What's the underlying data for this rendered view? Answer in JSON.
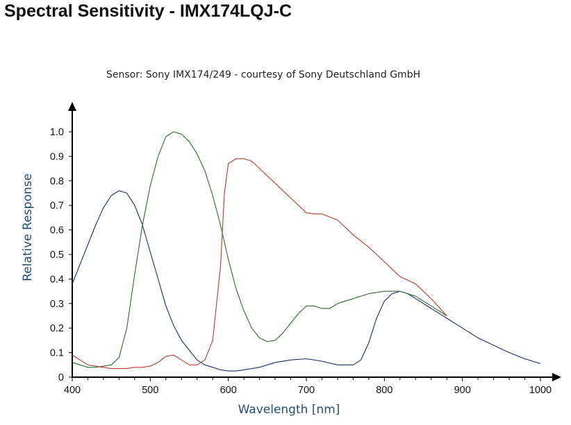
{
  "page": {
    "title": "Spectral Sensitivity - IMX174LQJ-C"
  },
  "chart_data": {
    "type": "line",
    "subtitle": "Sensor: Sony IMX174/249 - courtesy of Sony Deutschland GmbH",
    "xlabel": "Wavelength [nm]",
    "ylabel": "Relative Response",
    "xlim": [
      400,
      1000
    ],
    "ylim": [
      0,
      1.0
    ],
    "x_ticks": [
      400,
      500,
      600,
      700,
      800,
      900,
      1000
    ],
    "y_ticks": [
      0,
      0.1,
      0.2,
      0.3,
      0.4,
      0.5,
      0.6,
      0.7,
      0.8,
      0.9,
      1.0
    ],
    "x_tick_labels": [
      "400",
      "500",
      "600",
      "700",
      "800",
      "900",
      "1000"
    ],
    "y_tick_labels": [
      "0",
      "0.1",
      "0.2",
      "0.3",
      "0.4",
      "0.5",
      "0.6",
      "0.7",
      "0.8",
      "0.9",
      "1.0"
    ],
    "grid": false,
    "series": [
      {
        "color": "#1c2a6b",
        "points": [
          [
            400,
            0.38
          ],
          [
            410,
            0.46
          ],
          [
            420,
            0.54
          ],
          [
            430,
            0.62
          ],
          [
            440,
            0.69
          ],
          [
            450,
            0.74
          ],
          [
            460,
            0.76
          ],
          [
            470,
            0.75
          ],
          [
            480,
            0.7
          ],
          [
            490,
            0.62
          ],
          [
            500,
            0.51
          ],
          [
            510,
            0.4
          ],
          [
            520,
            0.29
          ],
          [
            530,
            0.21
          ],
          [
            540,
            0.15
          ],
          [
            550,
            0.11
          ],
          [
            560,
            0.07
          ],
          [
            570,
            0.05
          ],
          [
            580,
            0.04
          ],
          [
            590,
            0.03
          ],
          [
            600,
            0.025
          ],
          [
            610,
            0.025
          ],
          [
            620,
            0.03
          ],
          [
            640,
            0.04
          ],
          [
            660,
            0.06
          ],
          [
            680,
            0.07
          ],
          [
            700,
            0.075
          ],
          [
            720,
            0.065
          ],
          [
            740,
            0.05
          ],
          [
            760,
            0.05
          ],
          [
            770,
            0.07
          ],
          [
            780,
            0.14
          ],
          [
            790,
            0.24
          ],
          [
            800,
            0.31
          ],
          [
            810,
            0.34
          ],
          [
            820,
            0.35
          ],
          [
            830,
            0.34
          ],
          [
            840,
            0.32
          ],
          [
            860,
            0.28
          ],
          [
            880,
            0.24
          ],
          [
            900,
            0.2
          ],
          [
            920,
            0.16
          ],
          [
            940,
            0.13
          ],
          [
            960,
            0.1
          ],
          [
            980,
            0.075
          ],
          [
            1000,
            0.055
          ]
        ]
      },
      {
        "color": "#2e6b2e",
        "points": [
          [
            400,
            0.06
          ],
          [
            410,
            0.05
          ],
          [
            420,
            0.04
          ],
          [
            430,
            0.04
          ],
          [
            440,
            0.045
          ],
          [
            450,
            0.05
          ],
          [
            460,
            0.08
          ],
          [
            470,
            0.2
          ],
          [
            480,
            0.42
          ],
          [
            490,
            0.62
          ],
          [
            500,
            0.78
          ],
          [
            510,
            0.9
          ],
          [
            520,
            0.98
          ],
          [
            530,
            1.0
          ],
          [
            540,
            0.99
          ],
          [
            550,
            0.96
          ],
          [
            560,
            0.91
          ],
          [
            570,
            0.84
          ],
          [
            580,
            0.74
          ],
          [
            590,
            0.62
          ],
          [
            600,
            0.48
          ],
          [
            610,
            0.36
          ],
          [
            620,
            0.27
          ],
          [
            630,
            0.2
          ],
          [
            640,
            0.16
          ],
          [
            650,
            0.145
          ],
          [
            660,
            0.15
          ],
          [
            670,
            0.18
          ],
          [
            680,
            0.22
          ],
          [
            690,
            0.26
          ],
          [
            700,
            0.29
          ],
          [
            710,
            0.29
          ],
          [
            720,
            0.28
          ],
          [
            730,
            0.28
          ],
          [
            740,
            0.3
          ],
          [
            760,
            0.32
          ],
          [
            780,
            0.34
          ],
          [
            800,
            0.35
          ],
          [
            820,
            0.35
          ],
          [
            840,
            0.33
          ],
          [
            860,
            0.29
          ],
          [
            880,
            0.25
          ]
        ]
      },
      {
        "color": "#b83a2a",
        "points": [
          [
            400,
            0.09
          ],
          [
            410,
            0.07
          ],
          [
            420,
            0.05
          ],
          [
            430,
            0.045
          ],
          [
            440,
            0.04
          ],
          [
            450,
            0.035
          ],
          [
            460,
            0.035
          ],
          [
            470,
            0.035
          ],
          [
            480,
            0.04
          ],
          [
            490,
            0.04
          ],
          [
            500,
            0.045
          ],
          [
            510,
            0.06
          ],
          [
            520,
            0.085
          ],
          [
            530,
            0.09
          ],
          [
            540,
            0.07
          ],
          [
            550,
            0.05
          ],
          [
            560,
            0.05
          ],
          [
            570,
            0.07
          ],
          [
            580,
            0.15
          ],
          [
            590,
            0.45
          ],
          [
            595,
            0.75
          ],
          [
            600,
            0.87
          ],
          [
            610,
            0.89
          ],
          [
            620,
            0.89
          ],
          [
            630,
            0.88
          ],
          [
            640,
            0.85
          ],
          [
            660,
            0.79
          ],
          [
            680,
            0.73
          ],
          [
            700,
            0.67
          ],
          [
            710,
            0.665
          ],
          [
            720,
            0.665
          ],
          [
            740,
            0.64
          ],
          [
            760,
            0.58
          ],
          [
            780,
            0.53
          ],
          [
            800,
            0.47
          ],
          [
            820,
            0.41
          ],
          [
            840,
            0.38
          ],
          [
            860,
            0.32
          ],
          [
            880,
            0.25
          ]
        ]
      }
    ]
  }
}
